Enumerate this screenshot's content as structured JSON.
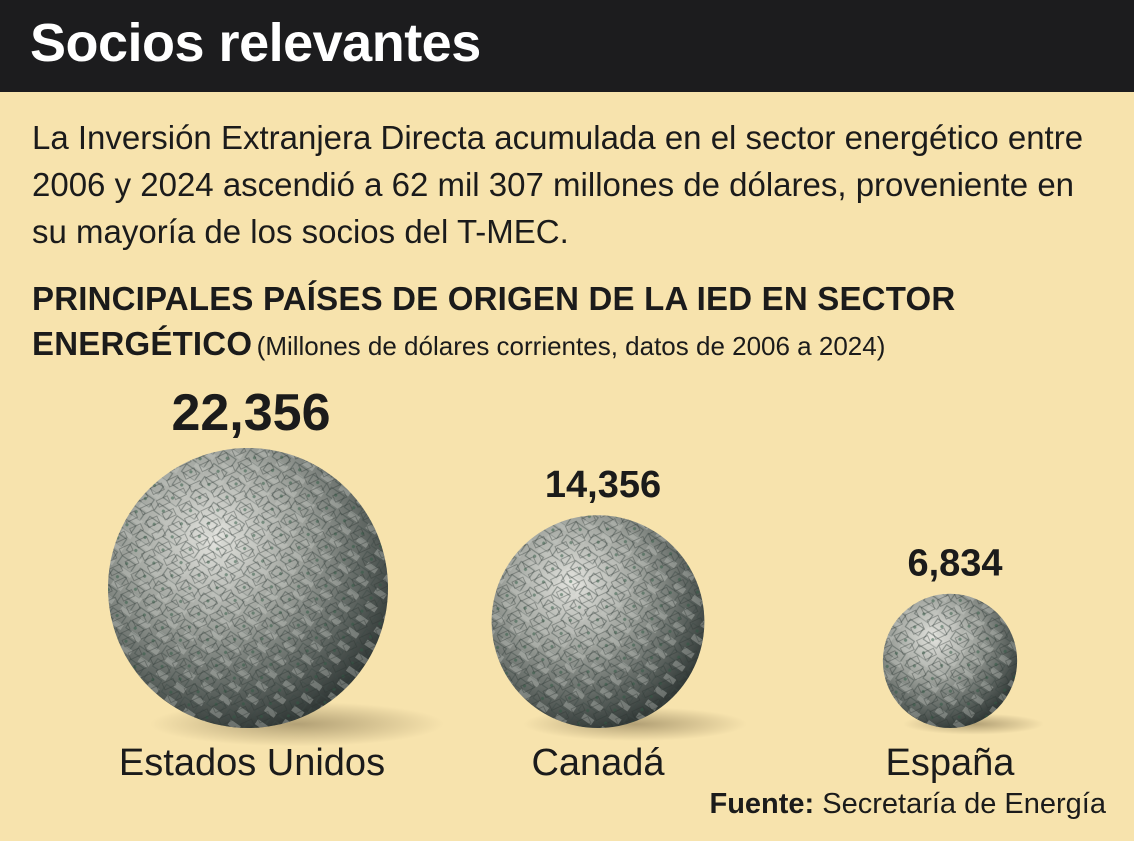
{
  "header": {
    "title": "Socios relevantes"
  },
  "intro": {
    "text": "La Inversión Extranjera Directa acumulada en el sector energético entre 2006 y 2024 ascendió a 62 mil 307 millones de dólares, proveniente en su mayoría de los socios del T-MEC."
  },
  "chart_data": {
    "type": "bubble",
    "title": "PRINCIPALES PAÍSES DE ORIGEN DE LA IED EN SECTOR ENERGÉTICO",
    "subtitle": "(Millones de dólares corrientes, datos de 2006 a 2024)",
    "categories": [
      "Estados Unidos",
      "Canadá",
      "España"
    ],
    "values": [
      22356,
      14356,
      6834
    ],
    "value_labels": [
      "22,356",
      "14,356",
      "6,834"
    ],
    "unit": "Millones de dólares corrientes"
  },
  "colors": {
    "background": "#f7e3ad",
    "header": "#1c1c1e",
    "ball_light": "#d8d8d4",
    "ball_dark": "#3d4442"
  },
  "source": {
    "label": "Fuente:",
    "text": "Secretaría de Energía"
  }
}
